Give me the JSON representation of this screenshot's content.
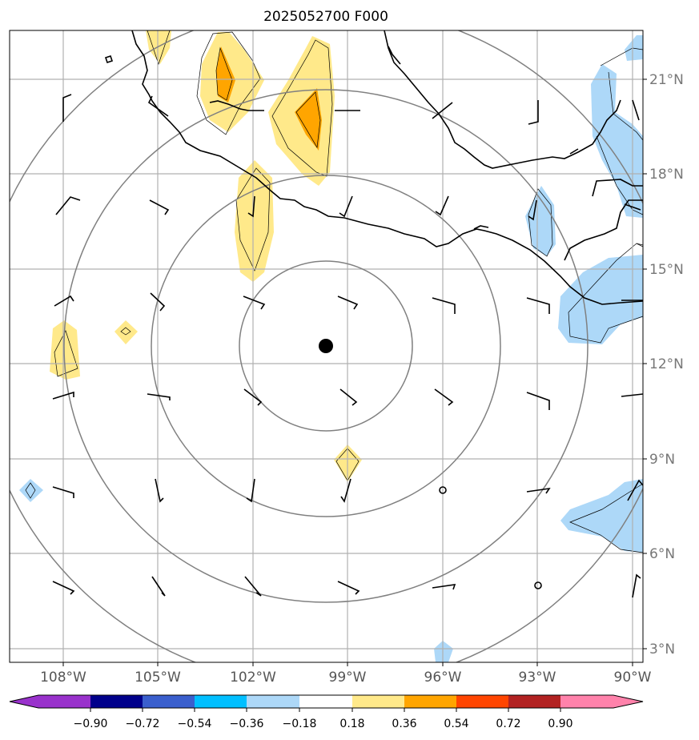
{
  "title": "2025052700 F000",
  "map": {
    "lon_min": -110.6,
    "lon_max": -89.7,
    "lat_min": 2.6,
    "lat_max": 22.9,
    "lon_ticks": [
      {
        "value": -108,
        "label": "108°W"
      },
      {
        "value": -105,
        "label": "105°W"
      },
      {
        "value": -102,
        "label": "102°W"
      },
      {
        "value": -99,
        "label": "99°W"
      },
      {
        "value": -96,
        "label": "96°W"
      },
      {
        "value": -93,
        "label": "93°W"
      },
      {
        "value": -90,
        "label": "90°W"
      }
    ],
    "lat_ticks": [
      {
        "value": 3,
        "label": "3°N"
      },
      {
        "value": 6,
        "label": "6°N"
      },
      {
        "value": 9,
        "label": "9°N"
      },
      {
        "value": 12,
        "label": "12°N"
      },
      {
        "value": 15,
        "label": "15°N"
      },
      {
        "value": 18,
        "label": "18°N"
      },
      {
        "value": 21,
        "label": "21°N"
      }
    ],
    "center": {
      "lon": -99.7,
      "lat": 12.6
    },
    "rings_deg": [
      2.8,
      5.5,
      8.3,
      11.0
    ]
  },
  "colorbar": {
    "levels": [
      "−0.90",
      "−0.72",
      "−0.54",
      "−0.36",
      "−0.18",
      "0.18",
      "0.36",
      "0.54",
      "0.72",
      "0.90"
    ],
    "colors": [
      "#9932cc",
      "#00008b",
      "#3a5fcd",
      "#00bfff",
      "#add8f8",
      "#ffffff",
      "#ffe98a",
      "#ffa500",
      "#ff4500",
      "#b22222",
      "#ff82ab"
    ]
  }
}
